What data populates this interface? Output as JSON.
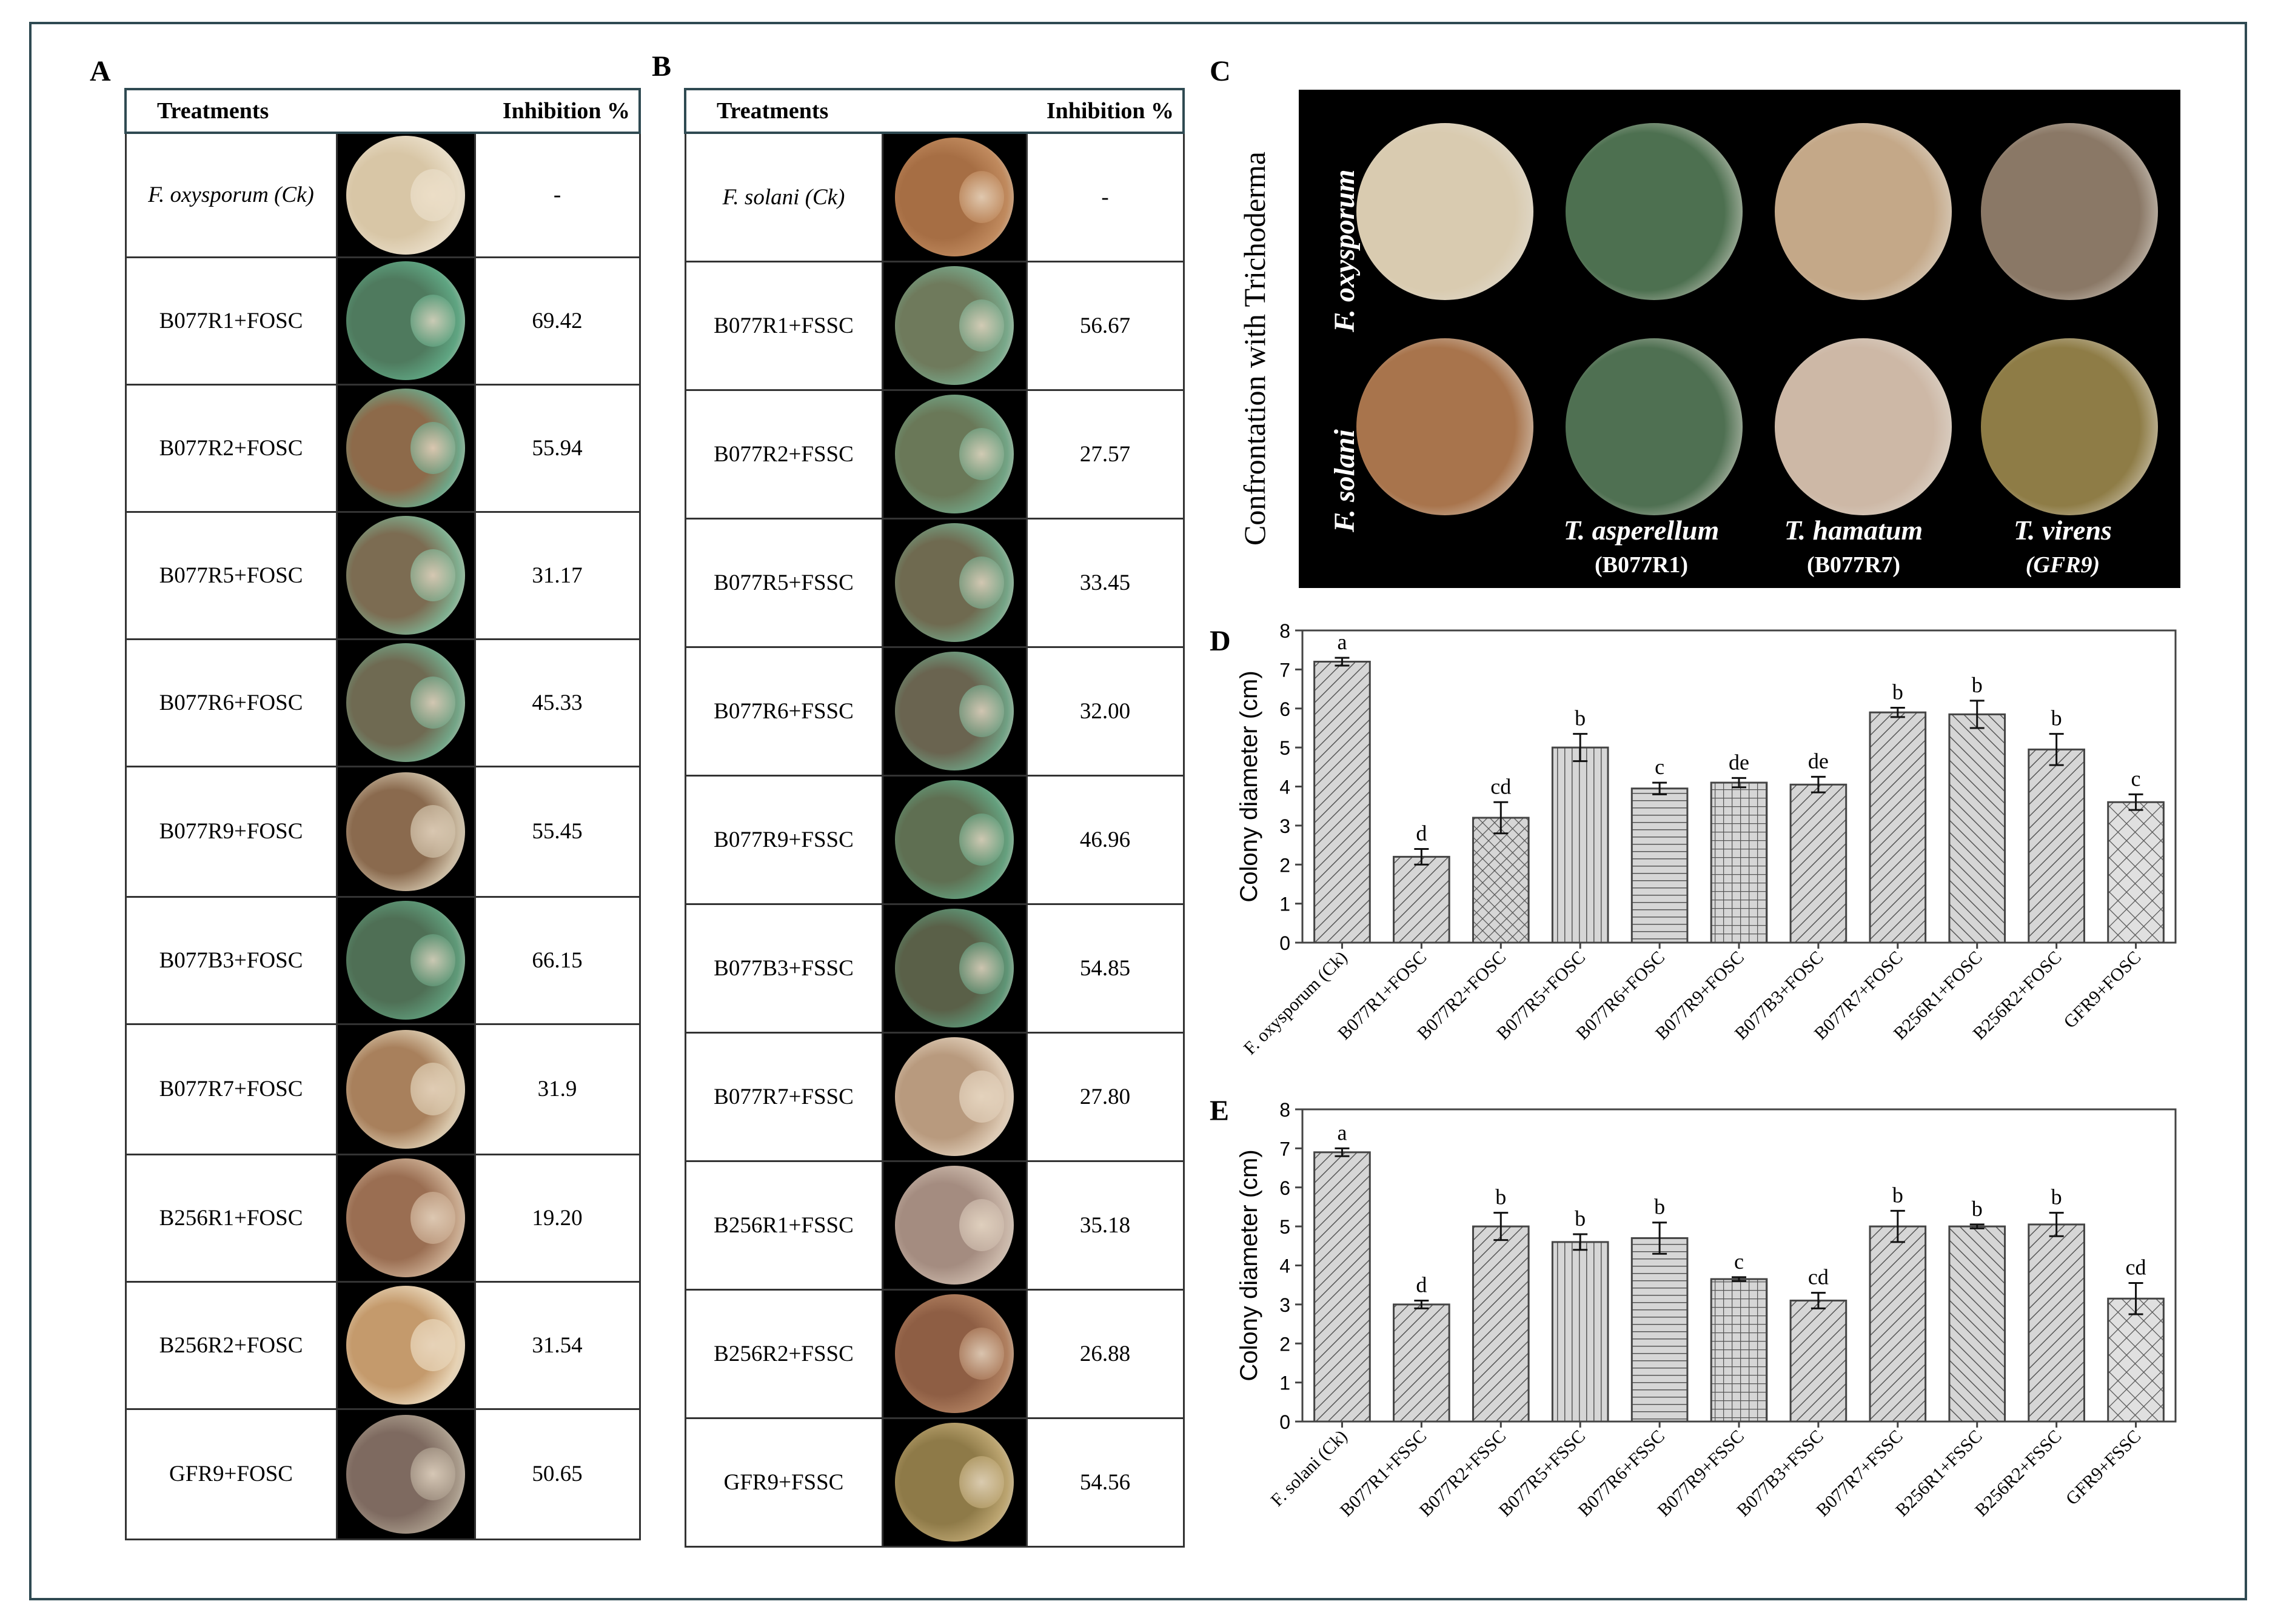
{
  "panels": {
    "A": "A",
    "B": "B",
    "C": "C",
    "D": "D",
    "E": "E"
  },
  "tableA": {
    "header": {
      "treatments": "Treatments",
      "inhibition": "Inhibition %"
    },
    "rows": [
      {
        "name": "F. oxysporum (Ck)",
        "italic": true,
        "value": "-",
        "dish": "#d8c6a6",
        "ring": "#e8dcc6"
      },
      {
        "name": "B077R1+FOSC",
        "value": "69.42",
        "dish": "#4f7a5e",
        "ring": "#5fa582"
      },
      {
        "name": "B077R2+FOSC",
        "value": "55.94",
        "dish": "#8d6a4a",
        "ring": "#6ea587"
      },
      {
        "name": "B077R5+FOSC",
        "value": "31.17",
        "dish": "#7c6c52",
        "ring": "#7fae8f"
      },
      {
        "name": "B077R6+FOSC",
        "value": "45.33",
        "dish": "#6f6a52",
        "ring": "#73a587"
      },
      {
        "name": "B077R9+FOSC",
        "value": "55.45",
        "dish": "#8a6a4e",
        "ring": "#c9b9a0"
      },
      {
        "name": "B077B3+FOSC",
        "value": "66.15",
        "dish": "#4f6f55",
        "ring": "#5f9a79"
      },
      {
        "name": "B077R7+FOSC",
        "value": "31.9",
        "dish": "#a8805c",
        "ring": "#d8c6aa"
      },
      {
        "name": "B256R1+FOSC",
        "value": "19.20",
        "dish": "#9a6e52",
        "ring": "#c8a98e"
      },
      {
        "name": "B256R2+FOSC",
        "value": "31.54",
        "dish": "#c49a6c",
        "ring": "#e6d2b4"
      },
      {
        "name": "GFR9+FOSC",
        "value": "50.65",
        "dish": "#7e6a60",
        "ring": "#a89a8a"
      }
    ]
  },
  "tableB": {
    "header": {
      "treatments": "Treatments",
      "inhibition": "Inhibition %"
    },
    "rows": [
      {
        "name": "F. solani (Ck)",
        "italic": true,
        "value": "-",
        "dish": "#a66e44",
        "ring": "#c08a5e"
      },
      {
        "name": "B077R1+FSSC",
        "value": "56.67",
        "dish": "#6f7a5c",
        "ring": "#78a88a"
      },
      {
        "name": "B077R2+FSSC",
        "value": "27.57",
        "dish": "#6a7858",
        "ring": "#72a485"
      },
      {
        "name": "B077R5+FSSC",
        "value": "33.45",
        "dish": "#6f6a50",
        "ring": "#74a486"
      },
      {
        "name": "B077R6+FSSC",
        "value": "32.00",
        "dish": "#6a6450",
        "ring": "#6fa083"
      },
      {
        "name": "B077R9+FSSC",
        "value": "46.96",
        "dish": "#5f6f52",
        "ring": "#64a07e"
      },
      {
        "name": "B077B3+FSSC",
        "value": "54.85",
        "dish": "#5a6048",
        "ring": "#5e9576"
      },
      {
        "name": "B077R7+FSSC",
        "value": "27.80",
        "dish": "#b89a7e",
        "ring": "#ddcab4"
      },
      {
        "name": "B256R1+FSSC",
        "value": "35.18",
        "dish": "#a48c80",
        "ring": "#c9b6a8"
      },
      {
        "name": "B256R2+FSSC",
        "value": "26.88",
        "dish": "#8e5e44",
        "ring": "#b08060"
      },
      {
        "name": "GFR9+FSSC",
        "value": "54.56",
        "dish": "#8e7a48",
        "ring": "#bba470"
      }
    ]
  },
  "photoC": {
    "side_label": "Confrontation with Trichoderma",
    "row_labels": [
      "F. oxysporum",
      "F. solani"
    ],
    "captions": [
      {
        "species": "T. asperellum",
        "strain": "(B077R1)"
      },
      {
        "species": "T. hamatum",
        "strain": "(B077R7)"
      },
      {
        "species": "T. virens",
        "strain": "(GFR9)"
      }
    ],
    "dishes": [
      [
        "#d9cbb0",
        "#4d7050",
        "#c4a888",
        "#8a7866"
      ],
      [
        "#a8744c",
        "#4f7052",
        "#cdb8a6",
        "#8e7c46"
      ]
    ]
  },
  "chart_data": [
    {
      "type": "bar",
      "panel": "D",
      "ylabel": "Colony diameter (cm)",
      "ylim": [
        0,
        8
      ],
      "yticks": [
        0,
        1,
        2,
        3,
        4,
        5,
        6,
        7,
        8
      ],
      "categories": [
        "F. oxysporum (Ck)",
        "B077R1+FOSC",
        "B077R2+FOSC",
        "B077R5+FOSC",
        "B077R6+FOSC",
        "B077R9+FOSC",
        "B077B3+FOSC",
        "B077R7+FOSC",
        "B256R1+FOSC",
        "B256R2+FOSC",
        "GFR9+FOSC"
      ],
      "values": [
        7.2,
        2.2,
        3.2,
        5.0,
        3.95,
        4.1,
        4.05,
        5.9,
        5.85,
        4.95,
        3.6
      ],
      "errors": [
        0.1,
        0.2,
        0.4,
        0.35,
        0.15,
        0.12,
        0.2,
        0.12,
        0.35,
        0.4,
        0.2
      ],
      "labels": [
        "a",
        "d",
        "cd",
        "b",
        "c",
        "de",
        "de",
        "b",
        "b",
        "b",
        "c"
      ],
      "patterns": [
        "diag",
        "diag",
        "cross",
        "vert",
        "horiz",
        "grid",
        "diag",
        "diag",
        "diagrev",
        "diag",
        "crossx"
      ]
    },
    {
      "type": "bar",
      "panel": "E",
      "ylabel": "Colony diameter (cm)",
      "ylim": [
        0,
        8
      ],
      "yticks": [
        0,
        1,
        2,
        3,
        4,
        5,
        6,
        7,
        8
      ],
      "categories": [
        "F. solani (Ck)",
        "B077R1+FSSC",
        "B077R2+FSSC",
        "B077R5+FSSC",
        "B077R6+FSSC",
        "B077R9+FSSC",
        "B077B3+FSSC",
        "B077R7+FSSC",
        "B256R1+FSSC",
        "B256R2+FSSC",
        "GFR9+FSSC"
      ],
      "values": [
        6.9,
        3.0,
        5.0,
        4.6,
        4.7,
        3.65,
        3.1,
        5.0,
        5.0,
        5.05,
        3.15
      ],
      "errors": [
        0.1,
        0.1,
        0.35,
        0.2,
        0.4,
        0.05,
        0.2,
        0.4,
        0.05,
        0.3,
        0.4
      ],
      "labels": [
        "a",
        "d",
        "b",
        "b",
        "b",
        "c",
        "cd",
        "b",
        "b",
        "b",
        "cd"
      ],
      "patterns": [
        "diag",
        "diag",
        "diag",
        "vert",
        "horiz",
        "grid",
        "diag",
        "diag",
        "diagrev",
        "diag",
        "crossx"
      ]
    }
  ]
}
